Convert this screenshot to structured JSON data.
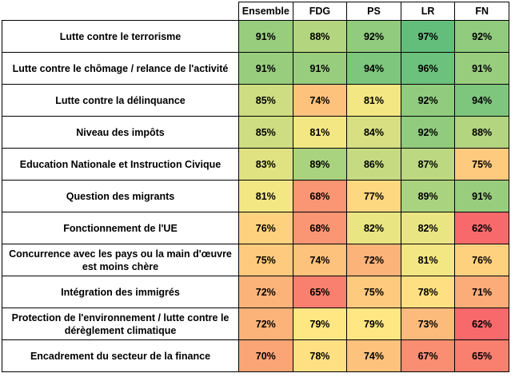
{
  "chart_data": {
    "type": "heatmap",
    "title": "",
    "columns": [
      "Ensemble",
      "FDG",
      "PS",
      "LR",
      "FN"
    ],
    "value_suffix": "%",
    "rows": [
      {
        "label": "Lutte contre le terrorisme",
        "values": [
          91,
          88,
          92,
          97,
          92
        ]
      },
      {
        "label": "Lutte contre le chômage / relance de l'activité",
        "values": [
          91,
          91,
          94,
          96,
          91
        ]
      },
      {
        "label": "Lutte contre la délinquance",
        "values": [
          85,
          74,
          81,
          92,
          94
        ]
      },
      {
        "label": "Niveau des impôts",
        "values": [
          85,
          81,
          84,
          92,
          88
        ]
      },
      {
        "label": "Education Nationale et Instruction Civique",
        "values": [
          83,
          89,
          86,
          87,
          75
        ]
      },
      {
        "label": "Question des migrants",
        "values": [
          81,
          68,
          77,
          89,
          91
        ]
      },
      {
        "label": "Fonctionnement de l'UE",
        "values": [
          76,
          68,
          82,
          82,
          62
        ]
      },
      {
        "label": "Concurrence avec les pays ou la main d'œuvre est moins chère",
        "values": [
          75,
          74,
          72,
          81,
          76
        ]
      },
      {
        "label": "Intégration des immigrés",
        "values": [
          72,
          65,
          75,
          78,
          71
        ]
      },
      {
        "label": "Protection de l'environnement / lutte contre le dérèglement climatique",
        "values": [
          72,
          79,
          79,
          73,
          62
        ]
      },
      {
        "label": "Encadrement du secteur de la finance",
        "values": [
          70,
          78,
          74,
          67,
          65
        ]
      }
    ],
    "color_scale": {
      "low": "#f8696b",
      "mid": "#ffeb84",
      "high": "#63be7b"
    }
  }
}
